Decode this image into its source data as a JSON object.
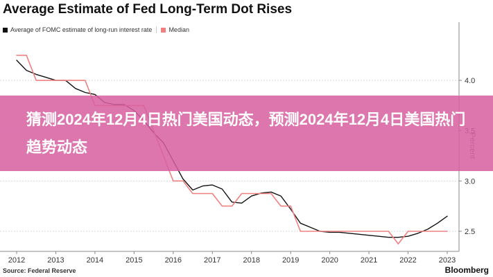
{
  "title": "Average Estimate of Fed Long-Term Dot Rises",
  "legend": [
    {
      "label": "Average of FOMC estimate of long-run interest rate",
      "color": "#111111"
    },
    {
      "label": "Median",
      "color": "#f08080"
    }
  ],
  "source": "Source: Federal Reserve",
  "brand": "Bloomberg",
  "brand_sub": "",
  "banner_text": "猜测2024年12月4日热门美国动态，预测2024年12月4日美国热门趋势动态",
  "colors": {
    "average": "#111111",
    "median": "#f08080",
    "grid": "#d9d9d9",
    "banner": "#d660a0"
  },
  "chart_data": {
    "type": "line",
    "title": "Average Estimate of Fed Long-Term Dot Rises",
    "xlabel": "",
    "ylabel": "Percent",
    "xlim": [
      2012,
      2023.2
    ],
    "ylim": [
      2.3,
      4.4
    ],
    "x_ticks": [
      2012,
      2013,
      2014,
      2015,
      2016,
      2017,
      2018,
      2019,
      2020,
      2021,
      2022,
      2023
    ],
    "y_ticks": [
      2.5,
      3.0,
      3.5,
      4.0
    ],
    "y_tick_labels": [
      "2.5",
      "3.0",
      "3.5",
      "4.0"
    ],
    "grid": "horizontal",
    "legend_position": "top-left",
    "series": [
      {
        "name": "Average of FOMC estimate of long-run interest rate",
        "color": "#111111",
        "style": "smooth",
        "points": [
          [
            2012.0,
            4.2
          ],
          [
            2012.25,
            4.1
          ],
          [
            2012.5,
            4.06
          ],
          [
            2012.75,
            4.03
          ],
          [
            2013.0,
            4.0
          ],
          [
            2013.25,
            4.0
          ],
          [
            2013.5,
            3.92
          ],
          [
            2013.75,
            3.88
          ],
          [
            2014.0,
            3.86
          ],
          [
            2014.25,
            3.78
          ],
          [
            2014.5,
            3.76
          ],
          [
            2014.75,
            3.76
          ],
          [
            2015.0,
            3.7
          ],
          [
            2015.25,
            3.6
          ],
          [
            2015.5,
            3.48
          ],
          [
            2015.75,
            3.38
          ],
          [
            2016.0,
            3.2
          ],
          [
            2016.25,
            3.02
          ],
          [
            2016.5,
            2.91
          ],
          [
            2016.75,
            2.95
          ],
          [
            2017.0,
            2.96
          ],
          [
            2017.25,
            2.92
          ],
          [
            2017.5,
            2.79
          ],
          [
            2017.75,
            2.78
          ],
          [
            2018.0,
            2.85
          ],
          [
            2018.25,
            2.88
          ],
          [
            2018.5,
            2.89
          ],
          [
            2018.75,
            2.85
          ],
          [
            2019.0,
            2.72
          ],
          [
            2019.25,
            2.58
          ],
          [
            2019.5,
            2.54
          ],
          [
            2019.75,
            2.5
          ],
          [
            2020.0,
            2.49
          ],
          [
            2020.25,
            2.49
          ],
          [
            2020.5,
            2.48
          ],
          [
            2020.75,
            2.47
          ],
          [
            2021.0,
            2.46
          ],
          [
            2021.25,
            2.45
          ],
          [
            2021.5,
            2.44
          ],
          [
            2021.75,
            2.44
          ],
          [
            2022.0,
            2.45
          ],
          [
            2022.25,
            2.48
          ],
          [
            2022.5,
            2.52
          ],
          [
            2022.75,
            2.58
          ],
          [
            2023.0,
            2.65
          ]
        ]
      },
      {
        "name": "Median",
        "color": "#f08080",
        "style": "step",
        "points": [
          [
            2012.0,
            4.25
          ],
          [
            2012.25,
            4.25
          ],
          [
            2012.5,
            4.0
          ],
          [
            2012.75,
            4.0
          ],
          [
            2013.0,
            4.0
          ],
          [
            2013.25,
            4.0
          ],
          [
            2013.5,
            4.0
          ],
          [
            2013.75,
            4.0
          ],
          [
            2014.0,
            3.75
          ],
          [
            2014.25,
            3.75
          ],
          [
            2014.5,
            3.75
          ],
          [
            2014.75,
            3.75
          ],
          [
            2015.0,
            3.75
          ],
          [
            2015.25,
            3.75
          ],
          [
            2015.5,
            3.5
          ],
          [
            2015.75,
            3.25
          ],
          [
            2016.0,
            3.0
          ],
          [
            2016.25,
            3.0
          ],
          [
            2016.5,
            2.875
          ],
          [
            2016.75,
            2.875
          ],
          [
            2017.0,
            2.875
          ],
          [
            2017.25,
            2.75
          ],
          [
            2017.5,
            2.75
          ],
          [
            2017.75,
            2.875
          ],
          [
            2018.0,
            2.875
          ],
          [
            2018.25,
            2.875
          ],
          [
            2018.5,
            2.875
          ],
          [
            2018.75,
            2.75
          ],
          [
            2019.0,
            2.75
          ],
          [
            2019.25,
            2.5
          ],
          [
            2019.5,
            2.5
          ],
          [
            2019.75,
            2.5
          ],
          [
            2020.0,
            2.5
          ],
          [
            2020.25,
            2.5
          ],
          [
            2020.5,
            2.5
          ],
          [
            2020.75,
            2.5
          ],
          [
            2021.0,
            2.5
          ],
          [
            2021.25,
            2.5
          ],
          [
            2021.5,
            2.5
          ],
          [
            2021.75,
            2.375
          ],
          [
            2022.0,
            2.5
          ],
          [
            2022.25,
            2.5
          ],
          [
            2022.5,
            2.5
          ],
          [
            2022.75,
            2.5
          ],
          [
            2023.0,
            2.5
          ]
        ]
      }
    ]
  }
}
